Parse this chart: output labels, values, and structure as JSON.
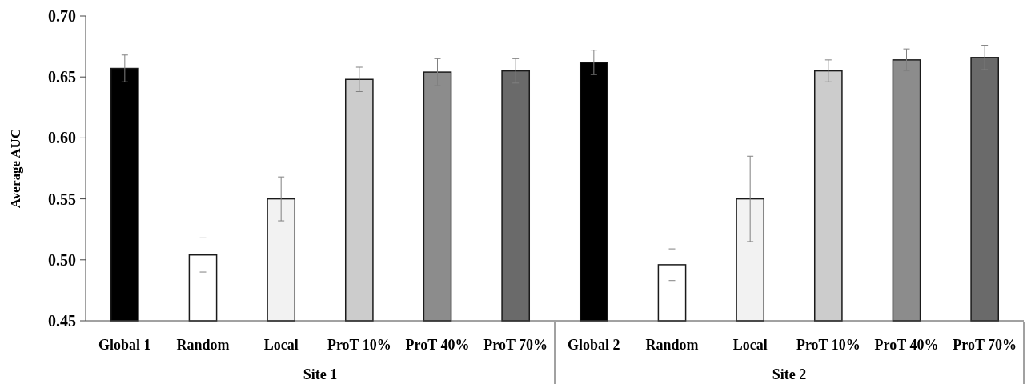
{
  "chart_data": {
    "type": "bar",
    "ylabel": "Average AUC",
    "categories": [
      "Global 1",
      "Random",
      "Local",
      "ProT 10%",
      "ProT 40%",
      "ProT 70%",
      "Global 2",
      "Random",
      "Local",
      "ProT 10%",
      "ProT 40%",
      "ProT 70%"
    ],
    "values": [
      0.657,
      0.504,
      0.55,
      0.648,
      0.654,
      0.655,
      0.662,
      0.496,
      0.55,
      0.655,
      0.664,
      0.666
    ],
    "errors": [
      0.011,
      0.014,
      0.018,
      0.01,
      0.011,
      0.01,
      0.01,
      0.013,
      0.035,
      0.009,
      0.009,
      0.01
    ],
    "colors": [
      "#000000",
      "#ffffff",
      "#f2f2f2",
      "#cccccc",
      "#8c8c8c",
      "#6a6a6a",
      "#000000",
      "#ffffff",
      "#f2f2f2",
      "#cccccc",
      "#8c8c8c",
      "#6a6a6a"
    ],
    "ylim": [
      0.45,
      0.7
    ],
    "yticks": [
      {
        "value": 0.45,
        "label": "0.45"
      },
      {
        "value": 0.5,
        "label": "0.50"
      },
      {
        "value": 0.55,
        "label": "0.55"
      },
      {
        "value": 0.6,
        "label": "0.60"
      },
      {
        "value": 0.65,
        "label": "0.65"
      },
      {
        "value": 0.7,
        "label": "0.70"
      }
    ],
    "annotations": [
      "Site 1",
      "Site 2"
    ]
  }
}
